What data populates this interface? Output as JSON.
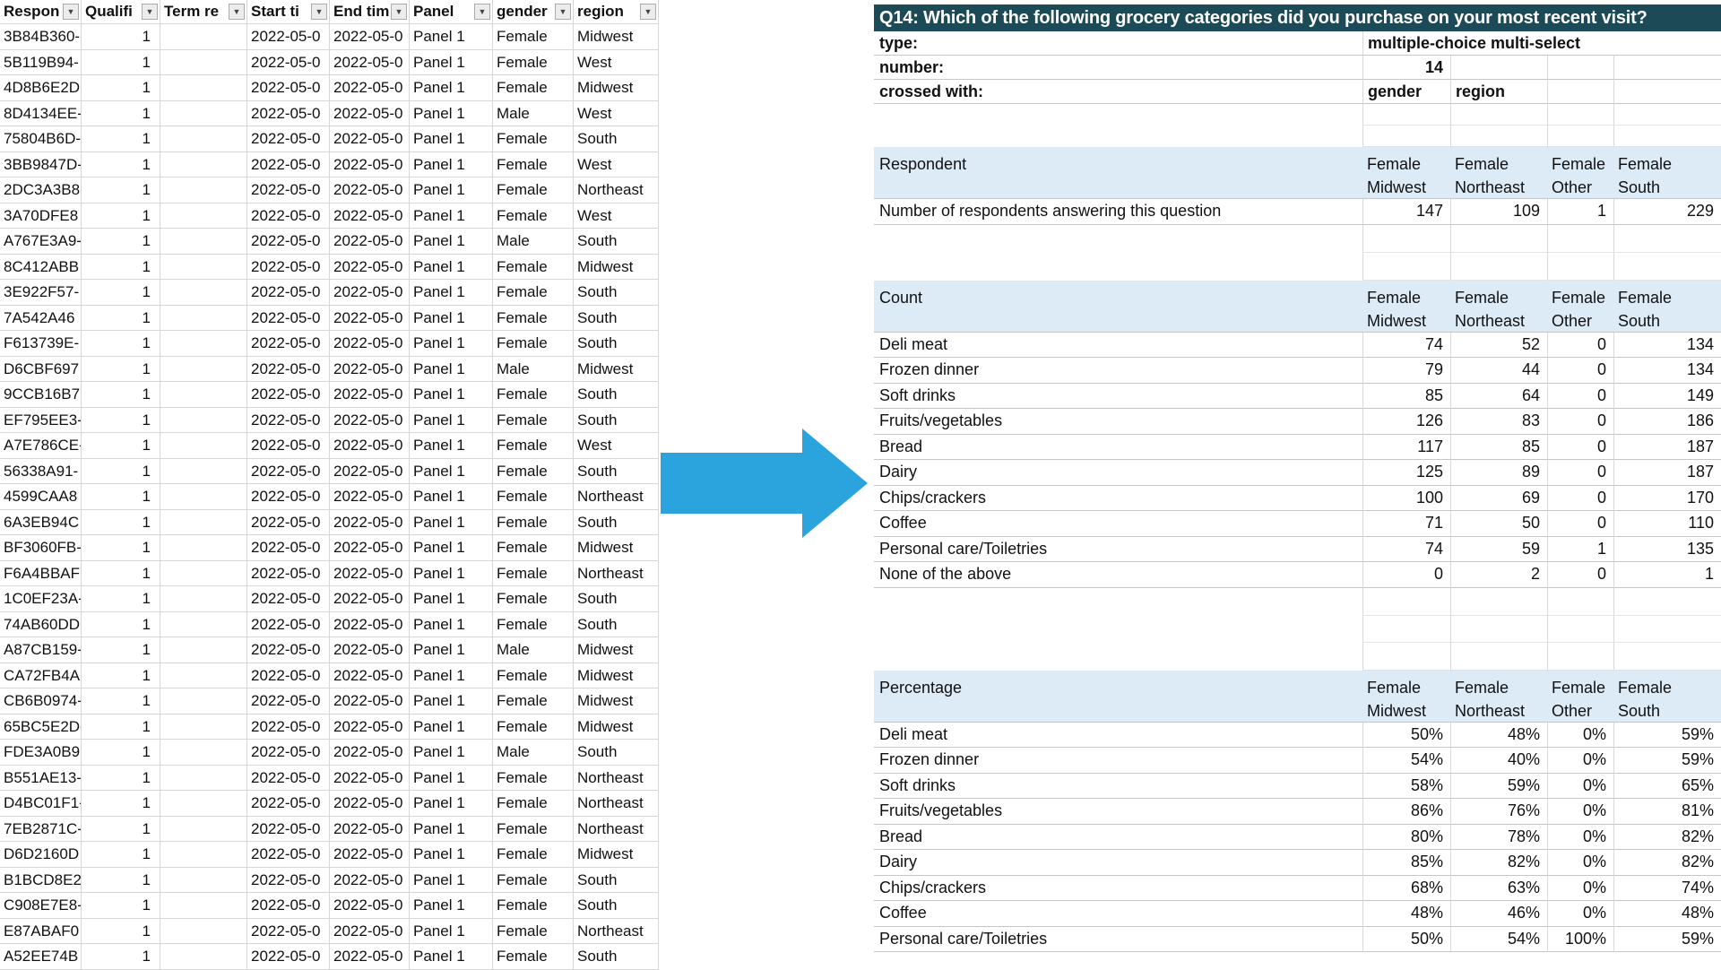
{
  "colors": {
    "title_bar_bg": "#1c4a56",
    "title_text": "#ffffff",
    "section_band_bg": "#ddebf7",
    "arrow_blue": "#2ba3dd"
  },
  "left_table": {
    "headers": [
      {
        "key": "respondent",
        "label": "Respon"
      },
      {
        "key": "qualified",
        "label": "Qualifi"
      },
      {
        "key": "term_reason",
        "label": "Term re"
      },
      {
        "key": "start_time",
        "label": "Start ti"
      },
      {
        "key": "end_time",
        "label": "End tim"
      },
      {
        "key": "panel",
        "label": "Panel"
      },
      {
        "key": "gender",
        "label": "gender"
      },
      {
        "key": "region",
        "label": "region"
      }
    ],
    "rows": [
      [
        "3B84B360-",
        "1",
        "",
        "2022-05-0",
        "2022-05-0",
        "Panel 1",
        "Female",
        "Midwest"
      ],
      [
        "5B119B94-",
        "1",
        "",
        "2022-05-0",
        "2022-05-0",
        "Panel 1",
        "Female",
        "West"
      ],
      [
        "4D8B6E2D",
        "1",
        "",
        "2022-05-0",
        "2022-05-0",
        "Panel 1",
        "Female",
        "Midwest"
      ],
      [
        "8D4134EE-",
        "1",
        "",
        "2022-05-0",
        "2022-05-0",
        "Panel 1",
        "Male",
        "West"
      ],
      [
        "75804B6D-",
        "1",
        "",
        "2022-05-0",
        "2022-05-0",
        "Panel 1",
        "Female",
        "South"
      ],
      [
        "3BB9847D-",
        "1",
        "",
        "2022-05-0",
        "2022-05-0",
        "Panel 1",
        "Female",
        "West"
      ],
      [
        "2DC3A3B8",
        "1",
        "",
        "2022-05-0",
        "2022-05-0",
        "Panel 1",
        "Female",
        "Northeast"
      ],
      [
        "3A70DFE8",
        "1",
        "",
        "2022-05-0",
        "2022-05-0",
        "Panel 1",
        "Female",
        "West"
      ],
      [
        "A767E3A9-",
        "1",
        "",
        "2022-05-0",
        "2022-05-0",
        "Panel 1",
        "Male",
        "South"
      ],
      [
        "8C412ABB",
        "1",
        "",
        "2022-05-0",
        "2022-05-0",
        "Panel 1",
        "Female",
        "Midwest"
      ],
      [
        "3E922F57-",
        "1",
        "",
        "2022-05-0",
        "2022-05-0",
        "Panel 1",
        "Female",
        "South"
      ],
      [
        "7A542A46",
        "1",
        "",
        "2022-05-0",
        "2022-05-0",
        "Panel 1",
        "Female",
        "South"
      ],
      [
        "F613739E-",
        "1",
        "",
        "2022-05-0",
        "2022-05-0",
        "Panel 1",
        "Female",
        "South"
      ],
      [
        "D6CBF697",
        "1",
        "",
        "2022-05-0",
        "2022-05-0",
        "Panel 1",
        "Male",
        "Midwest"
      ],
      [
        "9CCB16B7",
        "1",
        "",
        "2022-05-0",
        "2022-05-0",
        "Panel 1",
        "Female",
        "South"
      ],
      [
        "EF795EE3-",
        "1",
        "",
        "2022-05-0",
        "2022-05-0",
        "Panel 1",
        "Female",
        "South"
      ],
      [
        "A7E786CE-",
        "1",
        "",
        "2022-05-0",
        "2022-05-0",
        "Panel 1",
        "Female",
        "West"
      ],
      [
        "56338A91-",
        "1",
        "",
        "2022-05-0",
        "2022-05-0",
        "Panel 1",
        "Female",
        "South"
      ],
      [
        "4599CAA8",
        "1",
        "",
        "2022-05-0",
        "2022-05-0",
        "Panel 1",
        "Female",
        "Northeast"
      ],
      [
        "6A3EB94C",
        "1",
        "",
        "2022-05-0",
        "2022-05-0",
        "Panel 1",
        "Female",
        "South"
      ],
      [
        "BF3060FB-",
        "1",
        "",
        "2022-05-0",
        "2022-05-0",
        "Panel 1",
        "Female",
        "Midwest"
      ],
      [
        "F6A4BBAF",
        "1",
        "",
        "2022-05-0",
        "2022-05-0",
        "Panel 1",
        "Female",
        "Northeast"
      ],
      [
        "1C0EF23A-",
        "1",
        "",
        "2022-05-0",
        "2022-05-0",
        "Panel 1",
        "Female",
        "South"
      ],
      [
        "74AB60DD",
        "1",
        "",
        "2022-05-0",
        "2022-05-0",
        "Panel 1",
        "Female",
        "South"
      ],
      [
        "A87CB159-",
        "1",
        "",
        "2022-05-0",
        "2022-05-0",
        "Panel 1",
        "Male",
        "Midwest"
      ],
      [
        "CA72FB4A",
        "1",
        "",
        "2022-05-0",
        "2022-05-0",
        "Panel 1",
        "Female",
        "Midwest"
      ],
      [
        "CB6B0974-",
        "1",
        "",
        "2022-05-0",
        "2022-05-0",
        "Panel 1",
        "Female",
        "Midwest"
      ],
      [
        "65BC5E2D-",
        "1",
        "",
        "2022-05-0",
        "2022-05-0",
        "Panel 1",
        "Female",
        "Midwest"
      ],
      [
        "FDE3A0B9",
        "1",
        "",
        "2022-05-0",
        "2022-05-0",
        "Panel 1",
        "Male",
        "South"
      ],
      [
        "B551AE13-",
        "1",
        "",
        "2022-05-0",
        "2022-05-0",
        "Panel 1",
        "Female",
        "Northeast"
      ],
      [
        "D4BC01F1-",
        "1",
        "",
        "2022-05-0",
        "2022-05-0",
        "Panel 1",
        "Female",
        "Northeast"
      ],
      [
        "7EB2871C-",
        "1",
        "",
        "2022-05-0",
        "2022-05-0",
        "Panel 1",
        "Female",
        "Northeast"
      ],
      [
        "D6D2160D",
        "1",
        "",
        "2022-05-0",
        "2022-05-0",
        "Panel 1",
        "Female",
        "Midwest"
      ],
      [
        "B1BCD8E2",
        "1",
        "",
        "2022-05-0",
        "2022-05-0",
        "Panel 1",
        "Female",
        "South"
      ],
      [
        "C908E7E8-",
        "1",
        "",
        "2022-05-0",
        "2022-05-0",
        "Panel 1",
        "Female",
        "South"
      ],
      [
        "E87ABAF0",
        "1",
        "",
        "2022-05-0",
        "2022-05-0",
        "Panel 1",
        "Female",
        "Northeast"
      ],
      [
        "A52EE74B",
        "1",
        "",
        "2022-05-0",
        "2022-05-0",
        "Panel 1",
        "Female",
        "South"
      ]
    ]
  },
  "right_panel": {
    "title": "Q14: Which of the following grocery categories did you purchase on your most recent visit?",
    "info": {
      "type_label": "type:",
      "type_value": "multiple-choice multi-select",
      "number_label": "number:",
      "number_value": "14",
      "crossed_label": "crossed with:",
      "crossed_value_1": "gender",
      "crossed_value_2": "region"
    },
    "column_headers": [
      {
        "line1": "Female",
        "line2": "Midwest"
      },
      {
        "line1": "Female",
        "line2": "Northeast"
      },
      {
        "line1": "Female",
        "line2": "Other"
      },
      {
        "line1": "Female",
        "line2": "South"
      }
    ],
    "sections": [
      {
        "name": "Respondent",
        "rows": [
          {
            "label": "Number of respondents answering this question",
            "values": [
              "147",
              "109",
              "1",
              "229"
            ]
          }
        ]
      },
      {
        "name": "Count",
        "rows": [
          {
            "label": "Deli meat",
            "values": [
              "74",
              "52",
              "0",
              "134"
            ]
          },
          {
            "label": "Frozen dinner",
            "values": [
              "79",
              "44",
              "0",
              "134"
            ]
          },
          {
            "label": "Soft drinks",
            "values": [
              "85",
              "64",
              "0",
              "149"
            ]
          },
          {
            "label": "Fruits/vegetables",
            "values": [
              "126",
              "83",
              "0",
              "186"
            ]
          },
          {
            "label": "Bread",
            "values": [
              "117",
              "85",
              "0",
              "187"
            ]
          },
          {
            "label": "Dairy",
            "values": [
              "125",
              "89",
              "0",
              "187"
            ]
          },
          {
            "label": "Chips/crackers",
            "values": [
              "100",
              "69",
              "0",
              "170"
            ]
          },
          {
            "label": "Coffee",
            "values": [
              "71",
              "50",
              "0",
              "110"
            ]
          },
          {
            "label": "Personal care/Toiletries",
            "values": [
              "74",
              "59",
              "1",
              "135"
            ]
          },
          {
            "label": "None of the above",
            "values": [
              "0",
              "2",
              "0",
              "1"
            ]
          }
        ]
      },
      {
        "name": "Percentage",
        "rows": [
          {
            "label": "Deli meat",
            "values": [
              "50%",
              "48%",
              "0%",
              "59%"
            ]
          },
          {
            "label": "Frozen dinner",
            "values": [
              "54%",
              "40%",
              "0%",
              "59%"
            ]
          },
          {
            "label": "Soft drinks",
            "values": [
              "58%",
              "59%",
              "0%",
              "65%"
            ]
          },
          {
            "label": "Fruits/vegetables",
            "values": [
              "86%",
              "76%",
              "0%",
              "81%"
            ]
          },
          {
            "label": "Bread",
            "values": [
              "80%",
              "78%",
              "0%",
              "82%"
            ]
          },
          {
            "label": "Dairy",
            "values": [
              "85%",
              "82%",
              "0%",
              "82%"
            ]
          },
          {
            "label": "Chips/crackers",
            "values": [
              "68%",
              "63%",
              "0%",
              "74%"
            ]
          },
          {
            "label": "Coffee",
            "values": [
              "48%",
              "46%",
              "0%",
              "48%"
            ]
          },
          {
            "label": "Personal care/Toiletries",
            "values": [
              "50%",
              "54%",
              "100%",
              "59%"
            ]
          }
        ]
      }
    ]
  }
}
